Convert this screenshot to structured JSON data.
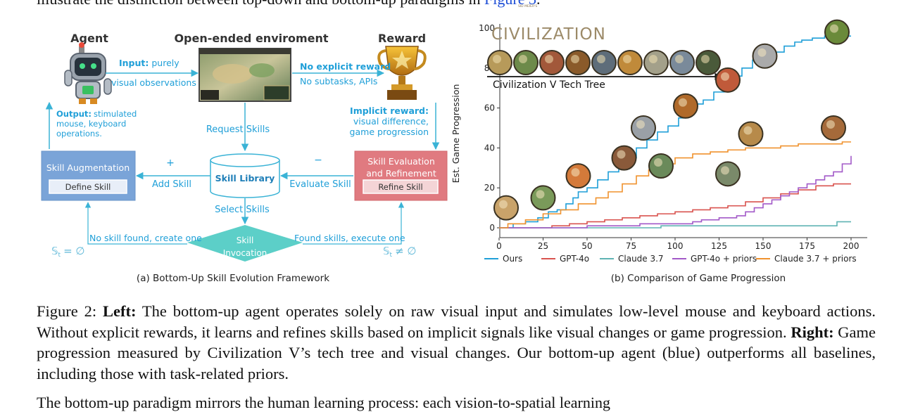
{
  "top_line": {
    "text": "illustrate the distinction between top-down and bottom-up paradigms in ",
    "link": "Figure 3",
    "tail": "."
  },
  "framework": {
    "agent_label": "Agent",
    "env_label": "Open-ended enviroment",
    "reward_label": "Reward",
    "input_bold": "Input:",
    "input_text": "purely",
    "input_text2": "visual observations",
    "output_bold": "Output:",
    "output_text": [
      "stimulated",
      "mouse, keyboard",
      "operations."
    ],
    "no_reward_bold": "No explicit reward",
    "no_reward_text": "No subtasks, APIs",
    "implicit_bold": "Implicit reward:",
    "implicit_text": [
      "visual difference,",
      "game progression"
    ],
    "request_skills": "Request Skills",
    "select_skills": "Select Skills",
    "add_skill": "Add Skill",
    "evaluate_skill": "Evaluate Skill",
    "plus": "+",
    "minus": "−",
    "skill_augmentation": "Skill Augmentation",
    "define_skill": "Define Skill",
    "skill_library": "Skill Library",
    "skill_evaluation": [
      "Skill Evaluation",
      "and Refinement"
    ],
    "refine_skill": "Refine Skill",
    "skill_invocation": [
      "Skill",
      "Invocation"
    ],
    "no_skill_found": "No skill found, create one",
    "found_skills": "Found skills, execute one",
    "empty_set": "𝕊",
    "empty_sub": "t",
    "eq_empty": "= ∅",
    "neq_empty": "≠ ∅",
    "caption": "(a) Bottom-Up Skill Evolution Framework"
  },
  "chart_logo": {
    "brand_small": "SID MEIER'S",
    "brand": "CIVILIZATION",
    "tech_tree_label": "Civilization V Tech Tree"
  },
  "chart_data": {
    "type": "line",
    "title": "",
    "xlabel": "",
    "ylabel": "Est. Game Progression",
    "xlim": [
      0,
      200
    ],
    "ylim": [
      0,
      100
    ],
    "x_ticks": [
      0,
      25,
      50,
      75,
      100,
      125,
      150,
      175,
      200
    ],
    "y_ticks": [
      0,
      20,
      40,
      60,
      80,
      100
    ],
    "grid": false,
    "legend_position": "bottom",
    "series": [
      {
        "name": "Ours",
        "color": "#1f9fd8",
        "points": [
          [
            0,
            0
          ],
          [
            5,
            0
          ],
          [
            8,
            2
          ],
          [
            15,
            3
          ],
          [
            22,
            5
          ],
          [
            28,
            8
          ],
          [
            33,
            9
          ],
          [
            38,
            12
          ],
          [
            42,
            15
          ],
          [
            45,
            18
          ],
          [
            50,
            20
          ],
          [
            56,
            24
          ],
          [
            62,
            28
          ],
          [
            68,
            32
          ],
          [
            72,
            35
          ],
          [
            78,
            40
          ],
          [
            84,
            44
          ],
          [
            90,
            48
          ],
          [
            96,
            51
          ],
          [
            102,
            55
          ],
          [
            106,
            58
          ],
          [
            110,
            62
          ],
          [
            116,
            64
          ],
          [
            122,
            68
          ],
          [
            128,
            73
          ],
          [
            133,
            76
          ],
          [
            138,
            80
          ],
          [
            144,
            84
          ],
          [
            150,
            86
          ],
          [
            156,
            88
          ],
          [
            162,
            91
          ],
          [
            168,
            93
          ],
          [
            172,
            94
          ],
          [
            178,
            95
          ],
          [
            185,
            96
          ],
          [
            190,
            96
          ],
          [
            200,
            96
          ]
        ]
      },
      {
        "name": "GPT-4o",
        "color": "#d9534f",
        "points": [
          [
            0,
            0
          ],
          [
            20,
            0
          ],
          [
            30,
            1
          ],
          [
            40,
            2
          ],
          [
            50,
            3
          ],
          [
            60,
            4
          ],
          [
            70,
            5
          ],
          [
            80,
            6
          ],
          [
            90,
            7
          ],
          [
            100,
            8
          ],
          [
            110,
            9
          ],
          [
            120,
            10
          ],
          [
            130,
            11
          ],
          [
            140,
            13
          ],
          [
            150,
            15
          ],
          [
            160,
            17
          ],
          [
            170,
            19
          ],
          [
            180,
            21
          ],
          [
            190,
            22
          ],
          [
            200,
            22
          ]
        ]
      },
      {
        "name": "Claude 3.7",
        "color": "#5fb3b3",
        "points": [
          [
            0,
            0
          ],
          [
            90,
            0
          ],
          [
            92,
            1
          ],
          [
            190,
            1
          ],
          [
            192,
            3
          ],
          [
            200,
            3
          ]
        ]
      },
      {
        "name": "GPT-4o + priors",
        "color": "#a259c8",
        "points": [
          [
            0,
            0
          ],
          [
            40,
            0
          ],
          [
            50,
            1
          ],
          [
            70,
            1
          ],
          [
            80,
            2
          ],
          [
            100,
            2
          ],
          [
            110,
            3
          ],
          [
            115,
            4
          ],
          [
            125,
            5
          ],
          [
            135,
            6
          ],
          [
            140,
            8
          ],
          [
            145,
            10
          ],
          [
            150,
            12
          ],
          [
            155,
            14
          ],
          [
            160,
            16
          ],
          [
            165,
            18
          ],
          [
            170,
            20
          ],
          [
            175,
            22
          ],
          [
            180,
            24
          ],
          [
            185,
            26
          ],
          [
            190,
            28
          ],
          [
            195,
            32
          ],
          [
            200,
            36
          ]
        ]
      },
      {
        "name": "Claude 3.7 + priors",
        "color": "#f0922e",
        "points": [
          [
            0,
            0
          ],
          [
            5,
            2
          ],
          [
            15,
            4
          ],
          [
            25,
            7
          ],
          [
            35,
            9
          ],
          [
            45,
            12
          ],
          [
            55,
            15
          ],
          [
            62,
            18
          ],
          [
            70,
            22
          ],
          [
            78,
            26
          ],
          [
            85,
            29
          ],
          [
            92,
            32
          ],
          [
            100,
            35
          ],
          [
            110,
            37
          ],
          [
            120,
            38
          ],
          [
            130,
            39
          ],
          [
            140,
            40
          ],
          [
            150,
            40
          ],
          [
            160,
            41
          ],
          [
            170,
            42
          ],
          [
            180,
            42
          ],
          [
            190,
            42
          ],
          [
            195,
            43
          ],
          [
            200,
            43
          ]
        ]
      }
    ]
  },
  "chart_caption": "(b) Comparison of Game Progression",
  "caption": {
    "label": "Figure 2: ",
    "left_bold": "Left:",
    "left_text": " The bottom-up agent operates solely on raw visual input and simulates low-level mouse and keyboard actions. Without explicit rewards, it learns and refines skills based on implicit signals like visual changes or game progression. ",
    "right_bold": "Right:",
    "right_text": " Game progression measured by Civilization V’s tech tree and visual changes. Our bottom-up agent (blue) outperforms all baselines, including those with task-related priors."
  },
  "bottom_line": {
    "text": "The bottom-up paradigm mirrors the human learning process: each vision-to-spatial learning"
  }
}
